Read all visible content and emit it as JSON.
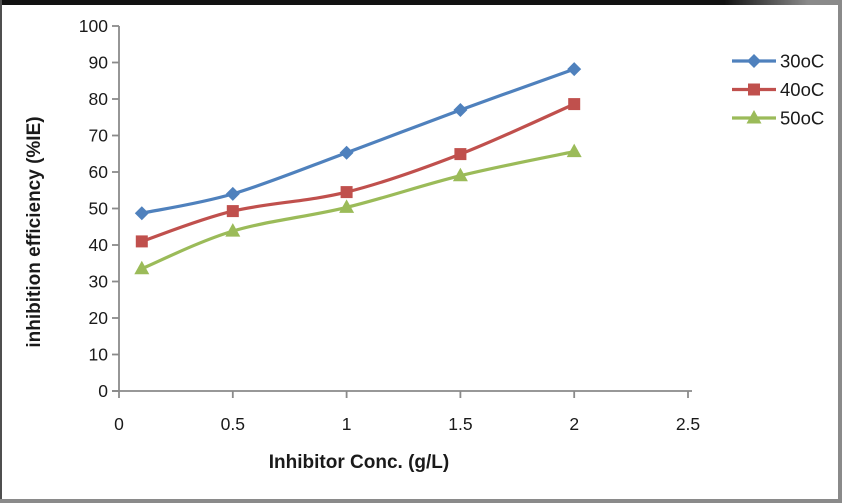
{
  "chart_data": {
    "type": "line",
    "title": "",
    "xlabel": "Inhibitor Conc. (g/L)",
    "ylabel": "inhibition efficiency (%IE)",
    "x": [
      0.1,
      0.5,
      1,
      1.5,
      2
    ],
    "series": [
      {
        "name": "30oC",
        "color": "#4F81BD",
        "marker": "diamond",
        "values": [
          48.7,
          54.0,
          65.3,
          77.0,
          88.2
        ]
      },
      {
        "name": "40oC",
        "color": "#C0504D",
        "marker": "square",
        "values": [
          41.0,
          49.3,
          54.5,
          64.9,
          78.6
        ]
      },
      {
        "name": "50oC",
        "color": "#9BBB59",
        "marker": "triangle",
        "values": [
          33.5,
          43.8,
          50.3,
          59.0,
          65.6
        ]
      }
    ],
    "xlim": [
      0,
      2.5
    ],
    "ylim": [
      0,
      100
    ],
    "x_tick_values": [
      0,
      0.5,
      1,
      1.5,
      2,
      2.5
    ],
    "x_tick_labels": [
      "0",
      "0.5",
      "1",
      "1.5",
      "2",
      "2.5"
    ],
    "y_tick_values": [
      0,
      10,
      20,
      30,
      40,
      50,
      60,
      70,
      80,
      90,
      100
    ],
    "y_tick_labels": [
      "0",
      "10",
      "20",
      "30",
      "40",
      "50",
      "60",
      "70",
      "80",
      "90",
      "100"
    ],
    "grid": false,
    "legend_position": "right",
    "legend": [
      "30oC",
      "40oC",
      "50oC"
    ],
    "axis_color": "#8a8a8a",
    "text_color": "#1a1a1a",
    "line_smoothing": true
  }
}
